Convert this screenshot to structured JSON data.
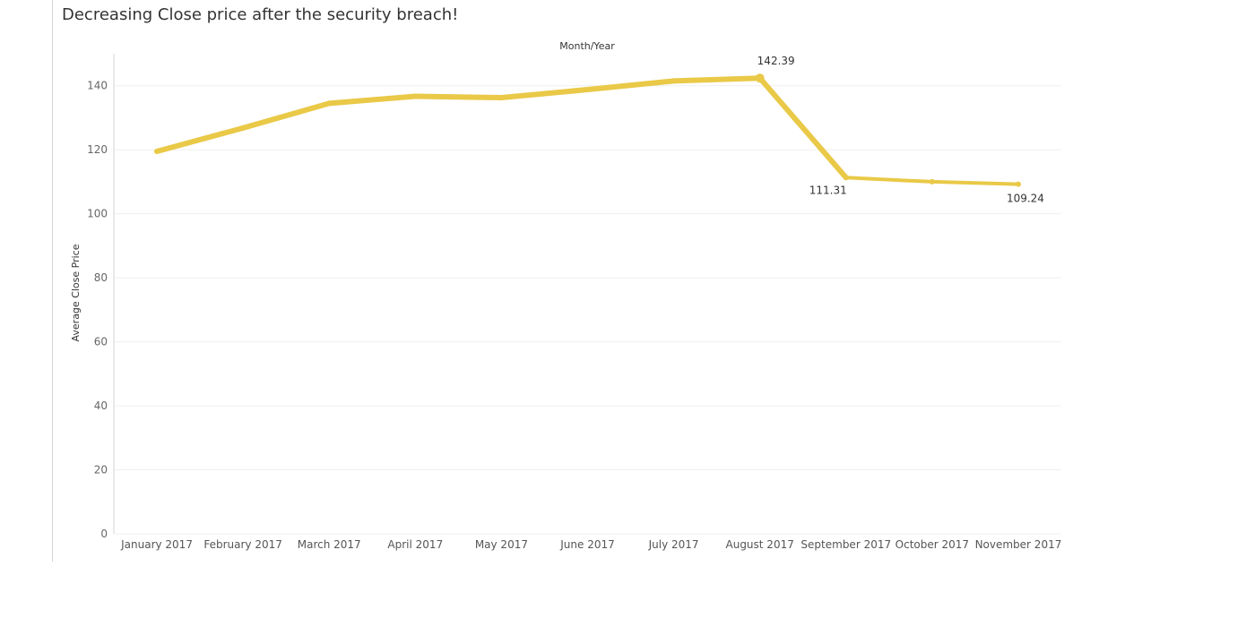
{
  "title": "Decreasing Close price after the security breach!",
  "colors": {
    "line": "#E9C947",
    "grid": "#EFEFEF",
    "axis": "#D4D4D4"
  },
  "chart_data": {
    "type": "line",
    "title": "Decreasing Close price after the security breach!",
    "top_axis_label": "Month/Year",
    "ylabel": "Average Close Price",
    "ylim": [
      0,
      150
    ],
    "yticks": [
      0,
      20,
      40,
      60,
      80,
      100,
      120,
      140
    ],
    "grid": true,
    "categories": [
      "January 2017",
      "February 2017",
      "March 2017",
      "April 2017",
      "May 2017",
      "June 2017",
      "July 2017",
      "August 2017",
      "September 2017",
      "October 2017",
      "November 2017"
    ],
    "series": [
      {
        "values": [
          119.5,
          126.8,
          134.5,
          136.7,
          136.3,
          138.8,
          141.5,
          142.39,
          111.31,
          110.0,
          109.24
        ]
      }
    ],
    "data_labels": [
      {
        "index": 7,
        "text": "142.39",
        "position": "above"
      },
      {
        "index": 8,
        "text": "111.31",
        "position": "below-left"
      },
      {
        "index": 10,
        "text": "109.24",
        "position": "below"
      }
    ]
  }
}
